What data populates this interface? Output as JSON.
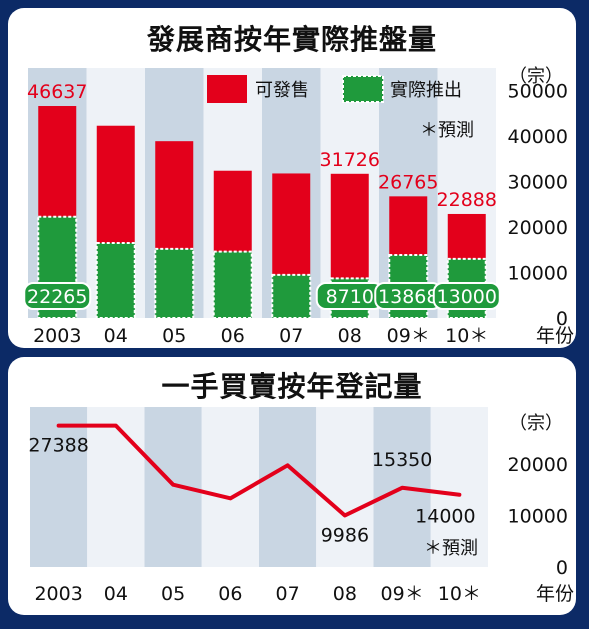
{
  "charts": [
    {
      "title": "發展商按年實際推盤量",
      "chart_data": {
        "type": "bar",
        "stacked": true,
        "title": "發展商按年實際推盤量",
        "unit": "（宗）",
        "categories": [
          "2003",
          "04",
          "05",
          "06",
          "07",
          "08",
          "09",
          "10"
        ],
        "category_suffix": [
          "",
          "",
          "",
          "",
          "",
          "",
          "＊",
          "＊"
        ],
        "x_suffix": "年份",
        "series": [
          {
            "name": "實際推出",
            "values": [
              22265,
              16500,
              15200,
              14600,
              9500,
              8710,
              13868,
              13000
            ]
          },
          {
            "name": "可發售",
            "values": [
              24372,
              25800,
              23700,
              17800,
              22300,
              23016,
              12897,
              9888
            ]
          }
        ],
        "totals": [
          46637,
          42300,
          38900,
          32400,
          31800,
          31726,
          26765,
          22888
        ],
        "data_labels": {
          "totals": [
            {
              "index": 0,
              "text": "46637"
            },
            {
              "index": 5,
              "text": "31726"
            },
            {
              "index": 6,
              "text": "26765"
            },
            {
              "index": 7,
              "text": "22888"
            }
          ],
          "bottom": [
            {
              "index": 0,
              "text": "22265"
            },
            {
              "index": 5,
              "text": "8710"
            },
            {
              "index": 6,
              "text": "13868"
            },
            {
              "index": 7,
              "text": "13000"
            }
          ]
        },
        "yticks": [
          "50000",
          "40000",
          "30000",
          "20000",
          "10000",
          "0"
        ],
        "yticks_values": [
          50000,
          40000,
          30000,
          20000,
          10000,
          0
        ],
        "ylim": [
          0,
          55000
        ],
        "legend": [
          "可發售",
          "實際推出"
        ],
        "legend_position": "top-right",
        "note": "＊預測",
        "colors": {
          "available": "#e3001b",
          "actual": "#1f9a3c",
          "actual_border": "#ffffff",
          "stripe": "#c9d6e3",
          "stripe_alt": "#eef2f7"
        }
      }
    },
    {
      "title": "一手買賣按年登記量",
      "chart_data": {
        "type": "line",
        "title": "一手買賣按年登記量",
        "unit": "（宗）",
        "categories": [
          "2003",
          "04",
          "05",
          "06",
          "07",
          "08",
          "09",
          "10"
        ],
        "category_suffix": [
          "",
          "",
          "",
          "",
          "",
          "",
          "＊",
          "＊"
        ],
        "x_suffix": "年份",
        "series": [
          {
            "values": [
              27388,
              27400,
              15950,
              13300,
              19700,
              9986,
              15350,
              14000
            ]
          }
        ],
        "data_labels": [
          {
            "index": 0,
            "text": "27388"
          },
          {
            "index": 5,
            "text": "9986"
          },
          {
            "index": 6,
            "text": "15350"
          },
          {
            "index": 7,
            "text": "14000"
          }
        ],
        "yticks": [
          "20000",
          "10000",
          "0"
        ],
        "yticks_values": [
          20000,
          10000,
          0
        ],
        "ylim": [
          0,
          31000
        ],
        "note": "＊預測",
        "colors": {
          "line": "#e3001b",
          "stripe": "#c9d6e3",
          "stripe_alt": "#eef2f7"
        }
      }
    }
  ]
}
